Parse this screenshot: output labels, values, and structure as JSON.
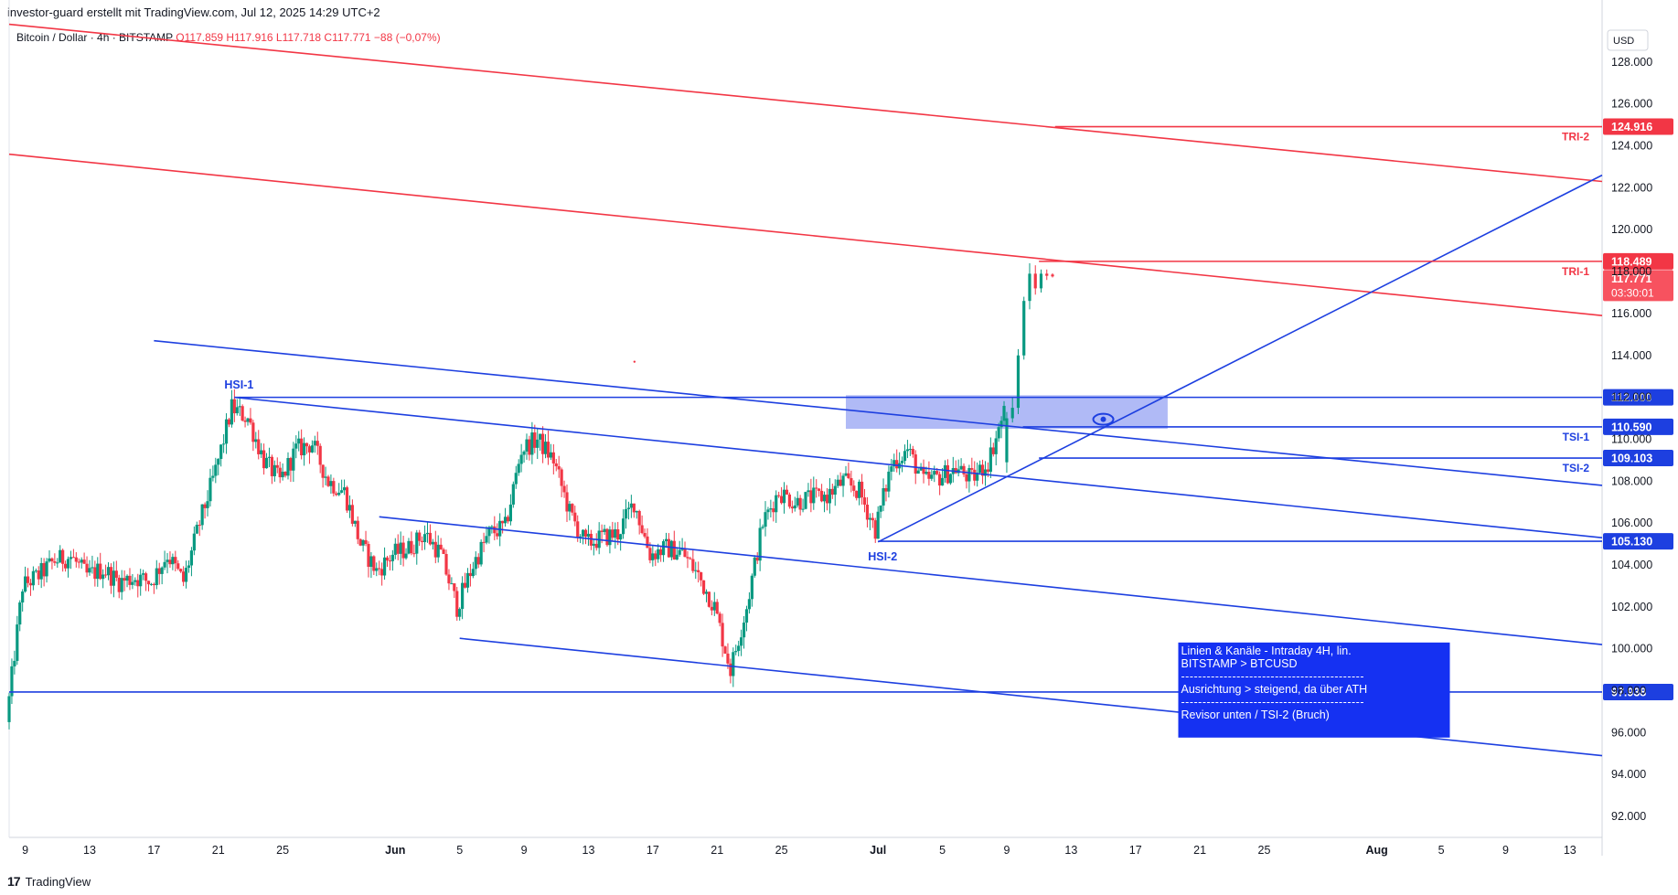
{
  "header": {
    "attribution": "investor-guard erstellt mit TradingView.com, Jul 12, 2025 14:29 UTC+2",
    "symbol_line": "Bitcoin / Dollar · 4h · BITSTAMP",
    "ohlc": "O117.859  H117.916  L117.718  C117.771  −88 (−0,07%)"
  },
  "footer": {
    "brand_mark": "17",
    "brand": "TradingView"
  },
  "colors": {
    "red": "#f23645",
    "blue": "#1d3fe0",
    "up": "#089981",
    "down": "#f23645",
    "zone": "#7b8cf0",
    "note_bg": "#1531f2"
  },
  "chart_data": {
    "type": "candlestick",
    "y_axis": {
      "currency": "USD",
      "min": 91.0,
      "max": 130.0,
      "ticks": [
        "128.000",
        "126.000",
        "124.000",
        "122.000",
        "120.000",
        "118.000",
        "116.000",
        "114.000",
        "112.000",
        "110.000",
        "108.000",
        "106.000",
        "104.000",
        "102.000",
        "100.000",
        "98.000",
        "96.000",
        "94.000",
        "92.000"
      ]
    },
    "x_axis": {
      "start": "2025-05-08",
      "end": "2025-08-15",
      "ticks": [
        {
          "date": "2025-05-09",
          "label": "9"
        },
        {
          "date": "2025-05-13",
          "label": "13"
        },
        {
          "date": "2025-05-17",
          "label": "17"
        },
        {
          "date": "2025-05-21",
          "label": "21"
        },
        {
          "date": "2025-05-25",
          "label": "25"
        },
        {
          "date": "2025-06-01",
          "label": "Jun"
        },
        {
          "date": "2025-06-05",
          "label": "5"
        },
        {
          "date": "2025-06-09",
          "label": "9"
        },
        {
          "date": "2025-06-13",
          "label": "13"
        },
        {
          "date": "2025-06-17",
          "label": "17"
        },
        {
          "date": "2025-06-21",
          "label": "21"
        },
        {
          "date": "2025-06-25",
          "label": "25"
        },
        {
          "date": "2025-07-01",
          "label": "Jul"
        },
        {
          "date": "2025-07-05",
          "label": "5"
        },
        {
          "date": "2025-07-09",
          "label": "9"
        },
        {
          "date": "2025-07-13",
          "label": "13"
        },
        {
          "date": "2025-07-17",
          "label": "17"
        },
        {
          "date": "2025-07-21",
          "label": "21"
        },
        {
          "date": "2025-07-25",
          "label": "25"
        },
        {
          "date": "2025-08-01",
          "label": "Aug"
        },
        {
          "date": "2025-08-05",
          "label": "5"
        },
        {
          "date": "2025-08-09",
          "label": "9"
        },
        {
          "date": "2025-08-13",
          "label": "13"
        }
      ]
    },
    "price_path": [
      [
        "2025-05-08",
        96.5
      ],
      [
        "2025-05-09",
        103.0
      ],
      [
        "2025-05-10",
        103.5
      ],
      [
        "2025-05-11",
        104.2
      ],
      [
        "2025-05-12",
        104.4
      ],
      [
        "2025-05-13",
        103.5
      ],
      [
        "2025-05-14",
        103.8
      ],
      [
        "2025-05-15",
        103.2
      ],
      [
        "2025-05-16",
        103.4
      ],
      [
        "2025-05-17",
        103.2
      ],
      [
        "2025-05-18",
        104.5
      ],
      [
        "2025-05-19",
        103.2
      ],
      [
        "2025-05-20",
        106.0
      ],
      [
        "2025-05-21",
        108.5
      ],
      [
        "2025-05-22",
        111.5
      ],
      [
        "2025-05-23",
        111.0
      ],
      [
        "2025-05-24",
        109.0
      ],
      [
        "2025-05-25",
        108.0
      ],
      [
        "2025-05-26",
        109.5
      ],
      [
        "2025-05-27",
        109.8
      ],
      [
        "2025-05-28",
        108.0
      ],
      [
        "2025-05-29",
        107.5
      ],
      [
        "2025-05-30",
        105.0
      ],
      [
        "2025-05-31",
        103.7
      ],
      [
        "2025-06-01",
        104.5
      ],
      [
        "2025-06-02",
        104.8
      ],
      [
        "2025-06-03",
        105.5
      ],
      [
        "2025-06-04",
        104.5
      ],
      [
        "2025-06-05",
        102.0
      ],
      [
        "2025-06-06",
        104.0
      ],
      [
        "2025-06-07",
        105.5
      ],
      [
        "2025-06-08",
        105.8
      ],
      [
        "2025-06-09",
        109.5
      ],
      [
        "2025-06-10",
        110.0
      ],
      [
        "2025-06-11",
        109.0
      ],
      [
        "2025-06-12",
        106.5
      ],
      [
        "2025-06-13",
        105.0
      ],
      [
        "2025-06-14",
        105.3
      ],
      [
        "2025-06-15",
        105.5
      ],
      [
        "2025-06-16",
        107.0
      ],
      [
        "2025-06-17",
        104.5
      ],
      [
        "2025-06-18",
        104.8
      ],
      [
        "2025-06-19",
        104.6
      ],
      [
        "2025-06-20",
        103.5
      ],
      [
        "2025-06-21",
        102.0
      ],
      [
        "2025-06-22",
        99.0
      ],
      [
        "2025-06-23",
        102.0
      ],
      [
        "2025-06-24",
        106.0
      ],
      [
        "2025-06-25",
        107.5
      ],
      [
        "2025-06-26",
        107.0
      ],
      [
        "2025-06-27",
        107.2
      ],
      [
        "2025-06-28",
        107.3
      ],
      [
        "2025-06-29",
        108.0
      ],
      [
        "2025-06-30",
        107.5
      ],
      [
        "2025-07-01",
        105.7
      ],
      [
        "2025-07-02",
        108.8
      ],
      [
        "2025-07-03",
        109.5
      ],
      [
        "2025-07-04",
        108.0
      ],
      [
        "2025-07-05",
        108.2
      ],
      [
        "2025-07-06",
        108.6
      ],
      [
        "2025-07-07",
        108.1
      ],
      [
        "2025-07-08",
        108.9
      ],
      [
        "2025-07-09",
        111.3
      ],
      [
        "2025-07-10",
        115.0
      ],
      [
        "2025-07-11",
        117.5
      ],
      [
        "2025-07-12",
        117.77
      ]
    ],
    "last_candles": [
      [
        "2025-07-09",
        108.9,
        108.4,
        111.3,
        111.0
      ],
      [
        "2025-07-10",
        111.0,
        110.8,
        112.0,
        111.5
      ],
      [
        "2025-07-10",
        111.5,
        111.2,
        114.3,
        114.0
      ],
      [
        "2025-07-10",
        114.0,
        113.8,
        116.8,
        116.6
      ],
      [
        "2025-07-11",
        116.6,
        116.2,
        118.4,
        117.9
      ],
      [
        "2025-07-11",
        117.9,
        116.9,
        118.3,
        117.2
      ],
      [
        "2025-07-11",
        117.2,
        117.0,
        118.1,
        117.9
      ],
      [
        "2025-07-12",
        117.9,
        117.6,
        118.1,
        117.8
      ],
      [
        "2025-07-12",
        117.86,
        117.72,
        117.92,
        117.77
      ]
    ],
    "levels": [
      {
        "name": "TRI-2",
        "value": 124.916,
        "label": "124.916",
        "color": "red",
        "from": "2025-07-12"
      },
      {
        "name": "TRI-1",
        "value": 118.489,
        "label": "118.489",
        "color": "red",
        "from": "2025-07-11"
      },
      {
        "name": "TSI-1",
        "value": 110.59,
        "label": "110.590",
        "color": "blue",
        "from": "2025-07-10"
      },
      {
        "name": "",
        "value": 112.0,
        "label": "112.000",
        "color": "blue",
        "from": "2025-05-22"
      },
      {
        "name": "TSI-2",
        "value": 109.103,
        "label": "109.103",
        "color": "blue",
        "from": "2025-07-11"
      },
      {
        "name": "",
        "value": 105.13,
        "label": "105.130",
        "color": "blue",
        "from": "2025-07-01"
      },
      {
        "name": "",
        "value": 97.938,
        "label": "97.938",
        "color": "blue",
        "from": "2025-05-08"
      }
    ],
    "current_price": {
      "label": "117.771",
      "countdown": "03:30:01"
    },
    "trendlines": [
      {
        "color": "red",
        "from": [
          "2025-05-08",
          129.8
        ],
        "to": [
          "2025-08-15",
          122.3
        ]
      },
      {
        "color": "red",
        "from": [
          "2025-05-08",
          123.6
        ],
        "to": [
          "2025-08-15",
          115.9
        ]
      },
      {
        "color": "blue",
        "from": [
          "2025-05-17",
          114.7
        ],
        "to": [
          "2025-08-15",
          107.8
        ]
      },
      {
        "color": "blue",
        "from": [
          "2025-05-22",
          112.0
        ],
        "to": [
          "2025-08-15",
          105.3
        ]
      },
      {
        "color": "blue",
        "from": [
          "2025-05-31",
          106.3
        ],
        "to": [
          "2025-08-15",
          100.2
        ]
      },
      {
        "color": "blue",
        "from": [
          "2025-06-05",
          100.5
        ],
        "to": [
          "2025-08-15",
          94.9
        ]
      },
      {
        "color": "blue",
        "from": [
          "2025-07-01",
          105.1
        ],
        "to": [
          "2025-08-15",
          122.6
        ]
      }
    ],
    "zone": {
      "from": "2025-06-29",
      "to": "2025-07-19",
      "low": 110.5,
      "high": 112.1
    },
    "annotations": [
      {
        "text": "HSI-1",
        "date": "2025-05-22",
        "value": 112.6
      },
      {
        "text": "HSI-2",
        "date": "2025-07-01",
        "value": 104.4
      }
    ],
    "note": {
      "lines": [
        "Linien & Kanäle - Intraday 4H, lin.",
        "BITSTAMP > BTCUSD",
        "-------------------------------------------",
        "Ausrichtung > steigend, da über ATH",
        "-------------------------------------------",
        "Revisor unten / TSI-2 (Bruch)"
      ]
    }
  }
}
